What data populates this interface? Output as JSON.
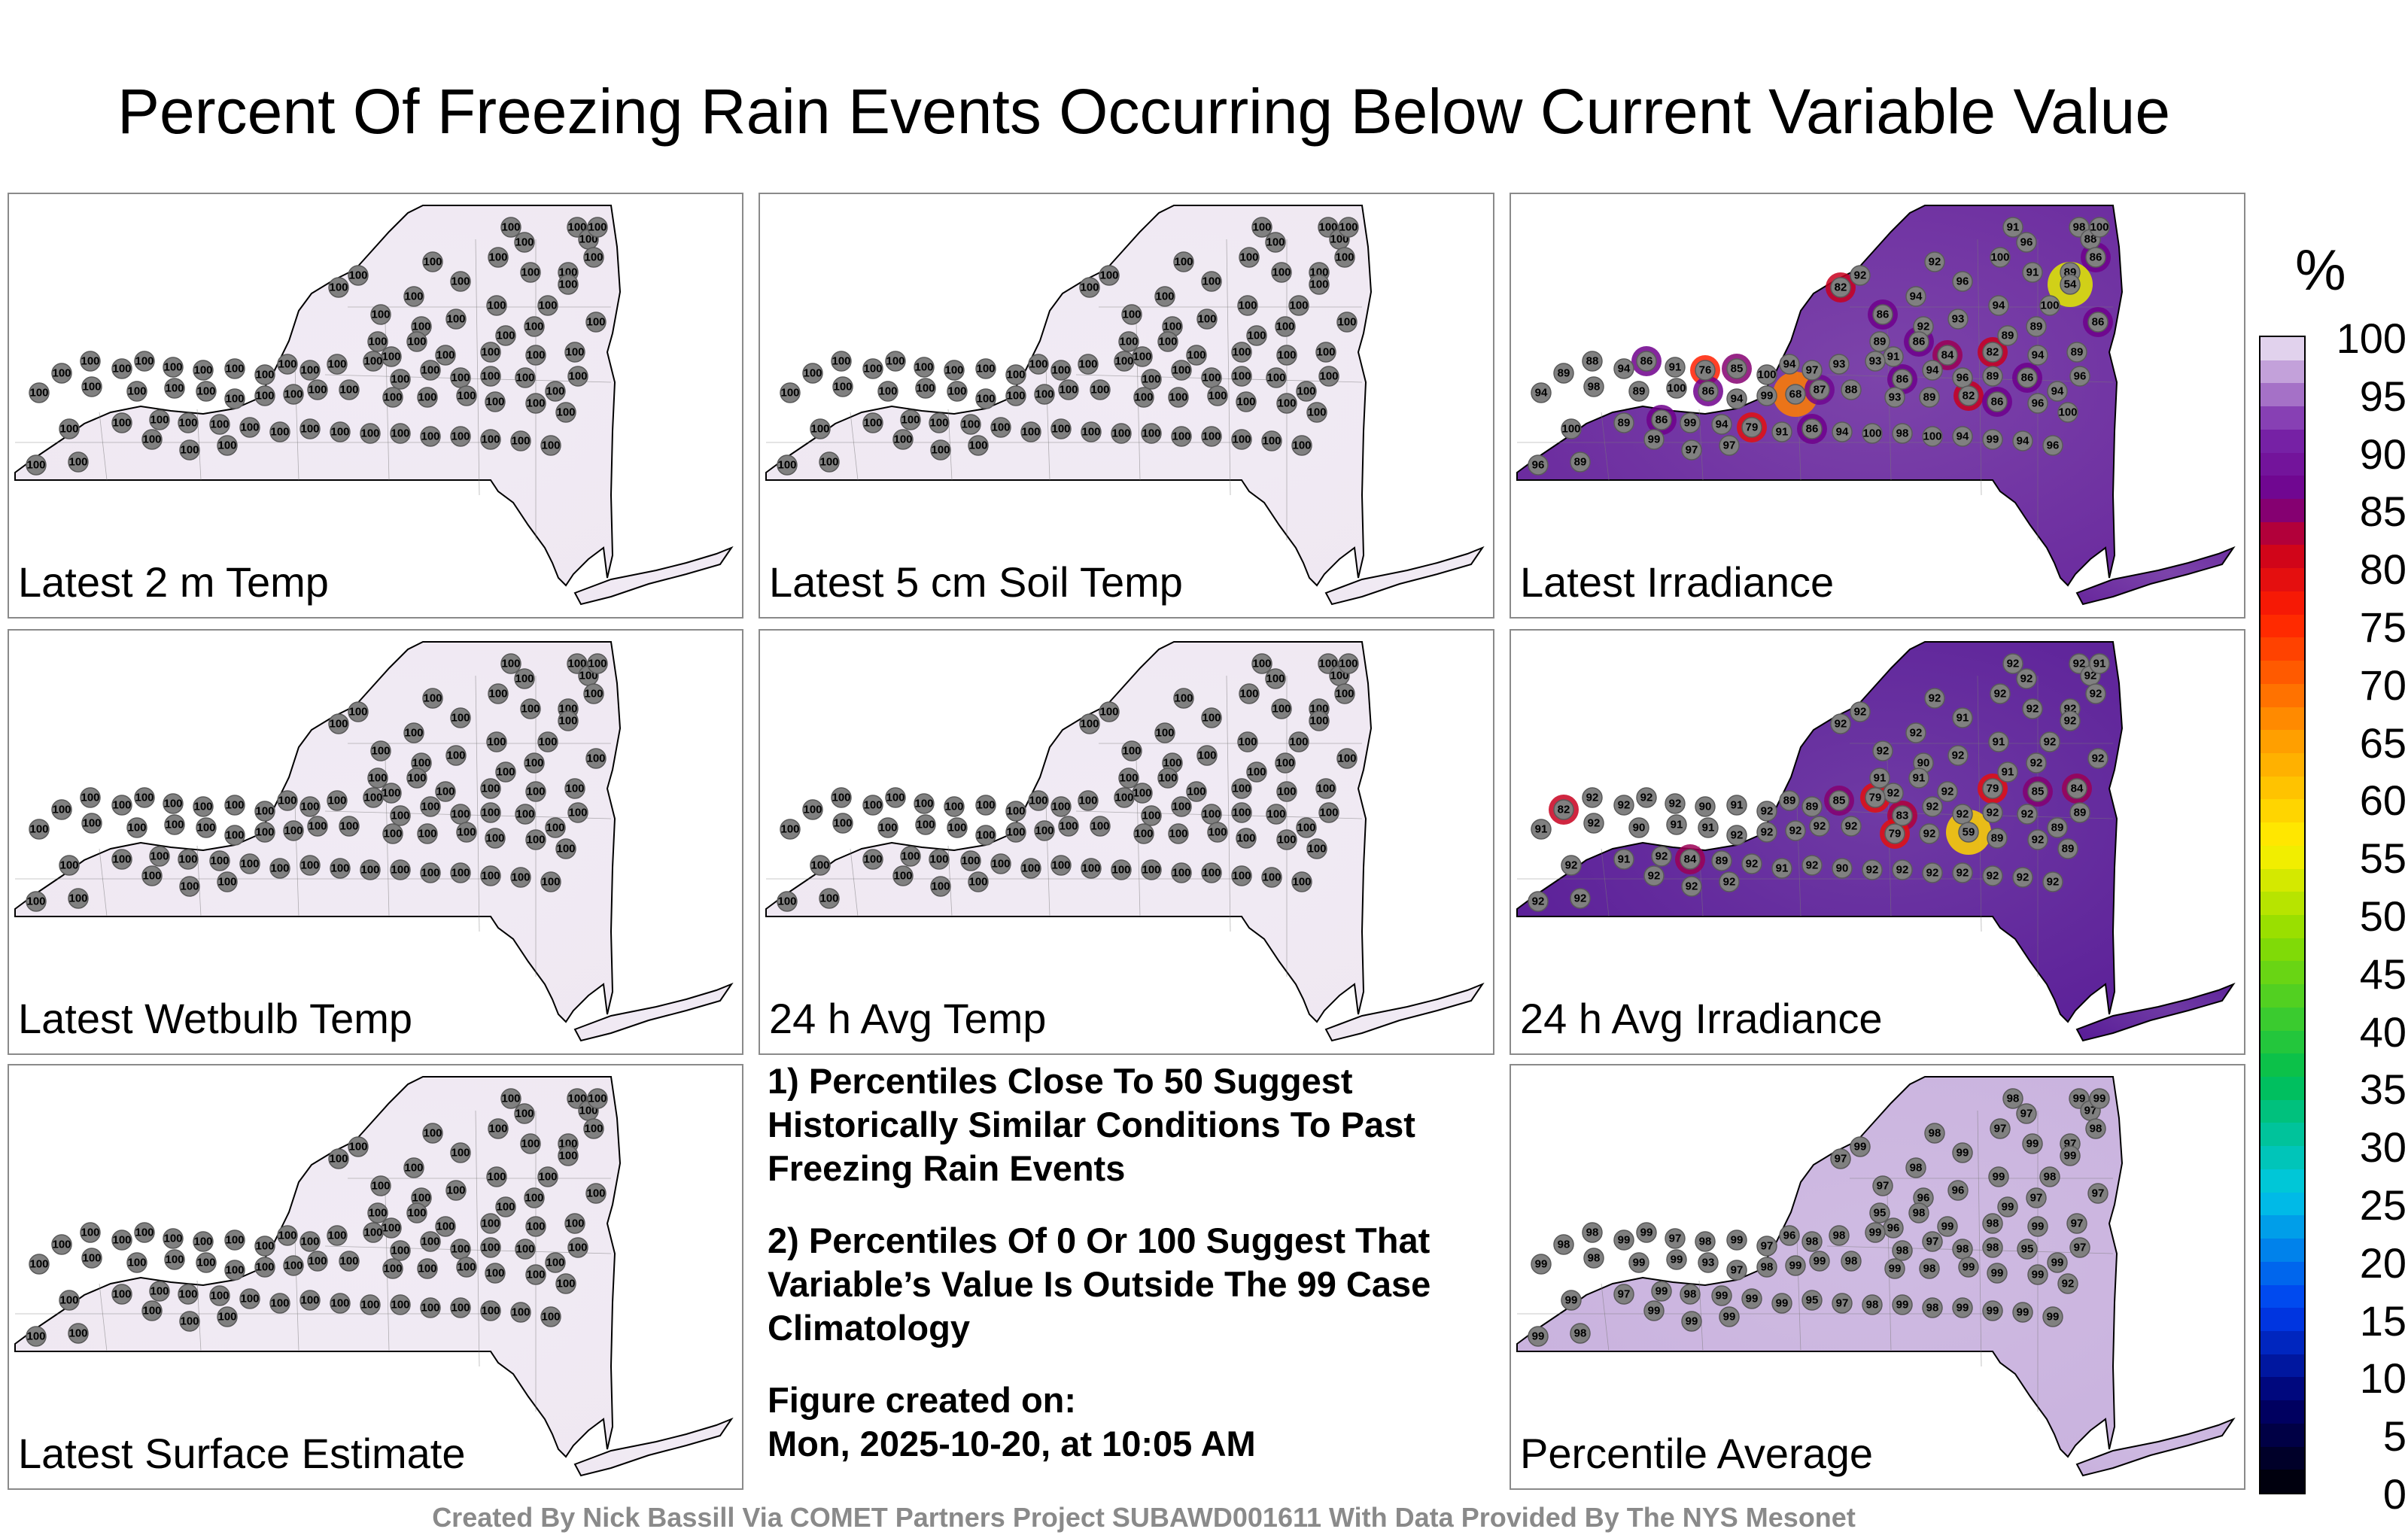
{
  "title": "Percent Of Freezing Rain Events Occurring Below Current Variable Value",
  "footer": "Created By Nick Bassill Via COMET Partners Project SUBAWD001611 With Data Provided By The NYS Mesonet",
  "colorbar": {
    "unit": "%",
    "ticks": [
      "100",
      "95",
      "90",
      "85",
      "80",
      "75",
      "70",
      "65",
      "60",
      "55",
      "50",
      "45",
      "40",
      "35",
      "30",
      "25",
      "20",
      "15",
      "10",
      "5",
      "0"
    ]
  },
  "notes": {
    "note1": "1) Percentiles Close To 50 Suggest Historically Similar Conditions To Past Freezing Rain Events",
    "note2": "2) Percentiles Of 0 Or 100 Suggest That Variable’s Value Is Outside The 99 Case Climatology",
    "created_label": "Figure created on:",
    "created_date": "Mon, 2025-10-20, at 10:05 AM"
  },
  "panels": [
    {
      "label": "Latest 2 m Temp",
      "fill": "#efe8f2",
      "base": 100
    },
    {
      "label": "Latest 5 cm Soil Temp",
      "fill": "#efe8f2",
      "base": 100
    },
    {
      "label": "Latest Irradiance",
      "fill": "#6a2a9e",
      "base": 89,
      "values": [
        91,
        98,
        88,
        96,
        100,
        89,
        91,
        100,
        86,
        54,
        92,
        92,
        82,
        96,
        94,
        86,
        94,
        100,
        86,
        89,
        89,
        93,
        92,
        86,
        89,
        91,
        84,
        82,
        94,
        89,
        96,
        94,
        86,
        89,
        96,
        94,
        86,
        93,
        93,
        97,
        94,
        100,
        85,
        76,
        91,
        86,
        94,
        88,
        89,
        94,
        98,
        89,
        100,
        86,
        94,
        99,
        68,
        87,
        88,
        93,
        89,
        82,
        86,
        96,
        100,
        89,
        86,
        99,
        94,
        79,
        91,
        86,
        94,
        100,
        98,
        100,
        94,
        99,
        94,
        96,
        100,
        99,
        97,
        97,
        96
      ]
    },
    {
      "label": "Latest Wetbulb Temp",
      "fill": "#efe8f2",
      "base": 100
    },
    {
      "label": "24 h Avg Temp",
      "fill": "#efe8f2",
      "base": 100
    },
    {
      "label": "24 h Avg Irradiance",
      "fill": "#5b1f98",
      "base": 92,
      "values": [
        92,
        92,
        92,
        92,
        91,
        92,
        92,
        92,
        92,
        92,
        92,
        92,
        92,
        91,
        92,
        92,
        91,
        92,
        92,
        92,
        91,
        92,
        90,
        91,
        91,
        92,
        92,
        79,
        85,
        84,
        89,
        89,
        92,
        92,
        92,
        92,
        83,
        79,
        85,
        89,
        89,
        92,
        91,
        90,
        92,
        92,
        92,
        92,
        82,
        91,
        92,
        90,
        91,
        91,
        92,
        92,
        92,
        92,
        92,
        79,
        92,
        59,
        89,
        92,
        89,
        91,
        92,
        84,
        89,
        92,
        91,
        92,
        90,
        92,
        92,
        92,
        92,
        92,
        92,
        92,
        92,
        92,
        92,
        92,
        92
      ]
    },
    {
      "label": "Latest Surface Estimate",
      "fill": "#efe8f2",
      "base": 100
    },
    null,
    {
      "label": "Percentile Average",
      "fill": "#c9b2de",
      "base": 98,
      "values": [
        98,
        99,
        97,
        97,
        99,
        97,
        99,
        97,
        98,
        99,
        98,
        99,
        97,
        99,
        98,
        97,
        99,
        98,
        97,
        97,
        99,
        96,
        96,
        98,
        95,
        96,
        99,
        98,
        99,
        97,
        97,
        99,
        95,
        98,
        98,
        97,
        98,
        99,
        98,
        98,
        96,
        97,
        99,
        98,
        97,
        99,
        99,
        98,
        98,
        99,
        98,
        99,
        99,
        93,
        97,
        98,
        99,
        99,
        98,
        99,
        98,
        99,
        99,
        99,
        92,
        97,
        99,
        98,
        99,
        99,
        99,
        95,
        97,
        98,
        99,
        98,
        99,
        99,
        99,
        99,
        99,
        99,
        99,
        99,
        99
      ]
    }
  ]
}
